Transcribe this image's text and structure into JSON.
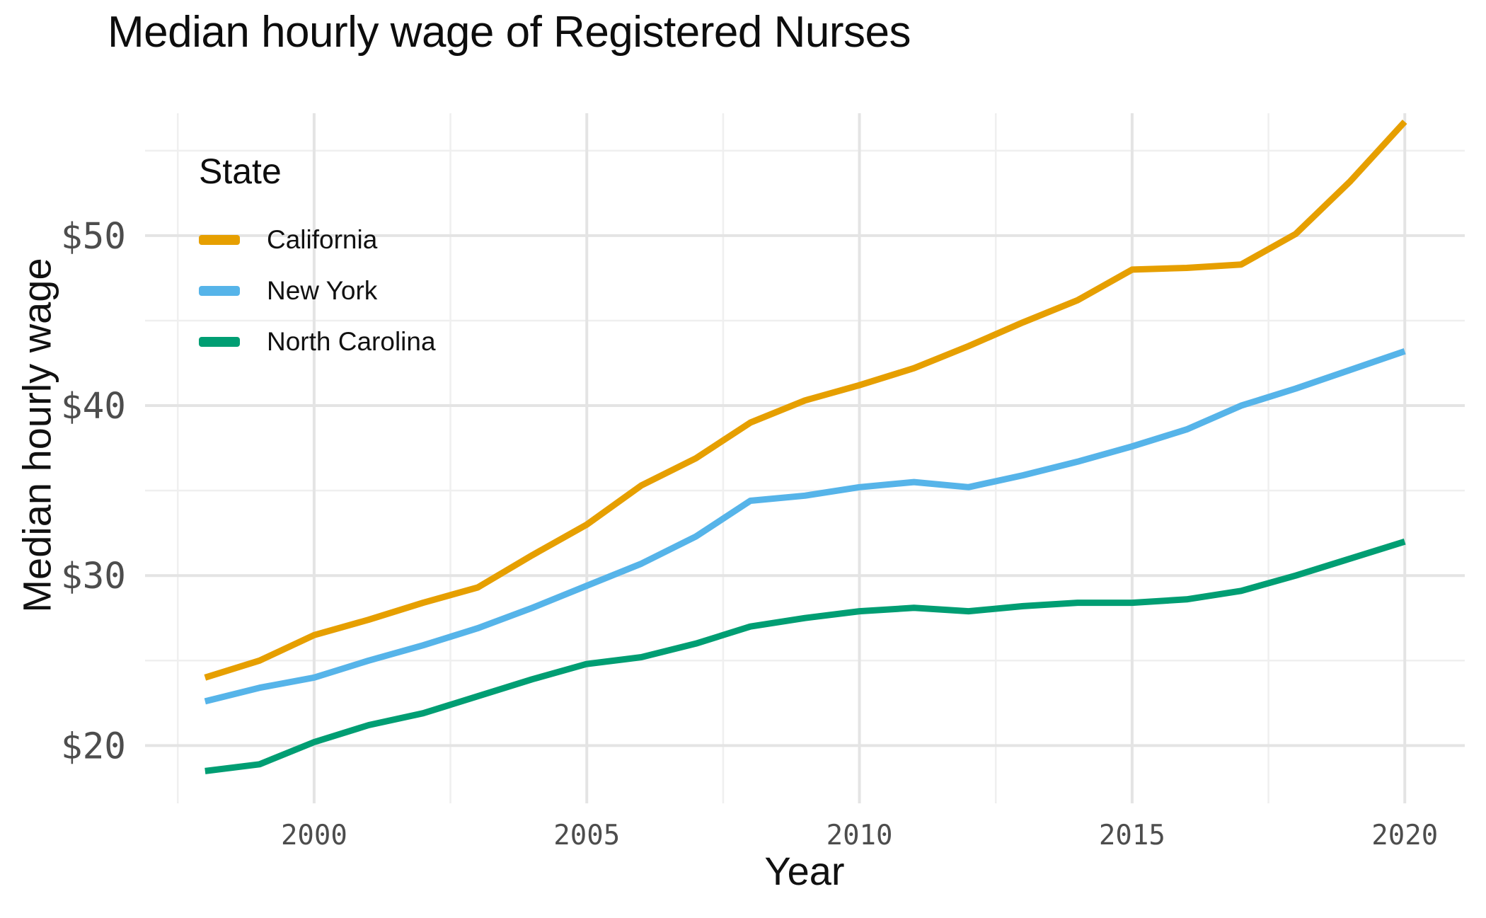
{
  "title": "Median hourly wage of Registered Nurses",
  "colors": {
    "california": "#E69F00",
    "new_york": "#56B4E9",
    "north_carolina": "#009E73",
    "grid_major": "#E4E4E4",
    "grid_minor": "#EFEFEF",
    "tick_text": "#4D4D4D"
  },
  "chart_data": {
    "type": "line",
    "title": "Median hourly wage of Registered Nurses",
    "xlabel": "Year",
    "ylabel": "Median hourly wage",
    "legend_title": "State",
    "legend_position": "inside-top-left",
    "grid": true,
    "xlim": [
      1996.9,
      2021.1
    ],
    "ylim": [
      16.6,
      57.2
    ],
    "x_ticks": {
      "values": [
        2000,
        2005,
        2010,
        2015,
        2020
      ],
      "labels": [
        "2000",
        "2005",
        "2010",
        "2015",
        "2020"
      ]
    },
    "y_ticks": {
      "values": [
        20,
        30,
        40,
        50
      ],
      "labels": [
        "$20",
        "$30",
        "$40",
        "$50"
      ]
    },
    "x_minor_ticks": [
      1997.5,
      2002.5,
      2007.5,
      2012.5,
      2017.5
    ],
    "y_minor_ticks": [
      25,
      35,
      45,
      55
    ],
    "x": [
      1998,
      1999,
      2000,
      2001,
      2002,
      2003,
      2004,
      2005,
      2006,
      2007,
      2008,
      2009,
      2010,
      2011,
      2012,
      2013,
      2014,
      2015,
      2016,
      2017,
      2018,
      2019,
      2020
    ],
    "series": [
      {
        "name": "California",
        "color": "#E69F00",
        "values": [
          24.0,
          25.0,
          26.5,
          27.4,
          28.4,
          29.3,
          31.2,
          33.0,
          35.3,
          36.9,
          39.0,
          40.3,
          41.2,
          42.2,
          43.5,
          44.9,
          46.2,
          48.0,
          48.1,
          48.3,
          50.1,
          53.2,
          56.7
        ]
      },
      {
        "name": "New York",
        "color": "#56B4E9",
        "values": [
          22.6,
          23.4,
          24.0,
          25.0,
          25.9,
          26.9,
          28.1,
          29.4,
          30.7,
          32.3,
          34.4,
          34.7,
          35.2,
          35.5,
          35.2,
          35.9,
          36.7,
          37.6,
          38.6,
          40.0,
          41.0,
          42.1,
          43.2
        ]
      },
      {
        "name": "North Carolina",
        "color": "#009E73",
        "values": [
          18.5,
          18.9,
          20.2,
          21.2,
          21.9,
          22.9,
          23.9,
          24.8,
          25.2,
          26.0,
          27.0,
          27.5,
          27.9,
          28.1,
          27.9,
          28.2,
          28.4,
          28.4,
          28.6,
          29.1,
          30.0,
          31.0,
          32.0
        ]
      }
    ]
  }
}
